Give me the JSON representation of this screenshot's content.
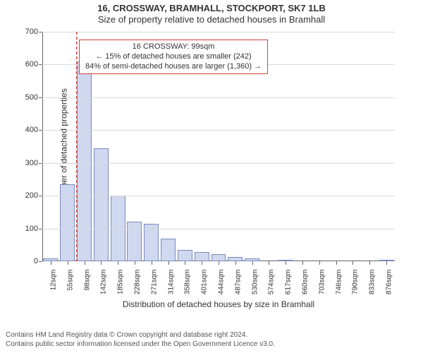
{
  "title_line1": "16, CROSSWAY, BRAMHALL, STOCKPORT, SK7 1LB",
  "title_line2": "Size of property relative to detached houses in Bramhall",
  "ylabel": "Number of detached properties",
  "xlabel": "Distribution of detached houses by size in Bramhall",
  "annotation": {
    "lines": [
      "16 CROSSWAY: 99sqm",
      "← 15% of detached houses are smaller (242)",
      "84% of semi-detached houses are larger (1,360) →"
    ],
    "border_color": "#d43f3a",
    "text_color": "#333333",
    "background_color": "#ffffff"
  },
  "chart": {
    "type": "histogram",
    "x_tick_labels": [
      "12sqm",
      "55sqm",
      "98sqm",
      "142sqm",
      "185sqm",
      "228sqm",
      "271sqm",
      "314sqm",
      "358sqm",
      "401sqm",
      "444sqm",
      "487sqm",
      "530sqm",
      "574sqm",
      "617sqm",
      "660sqm",
      "703sqm",
      "746sqm",
      "790sqm",
      "833sqm",
      "876sqm"
    ],
    "xlim": [
      0,
      21
    ],
    "values": [
      8,
      235,
      610,
      345,
      200,
      120,
      115,
      70,
      35,
      28,
      22,
      14,
      8,
      0,
      2,
      0,
      0,
      0,
      0,
      0,
      1
    ],
    "ylim": [
      0,
      700
    ],
    "ytick_step": 100,
    "bar_fill": "#cfd8ef",
    "bar_border": "#7a8bbd",
    "bar_border_width": 1,
    "bar_gap_ratio": 0.06,
    "grid_color": "#d9d9d9",
    "background_color": "#ffffff",
    "tick_label_color": "#333333",
    "highlight": {
      "x_index": 2.05,
      "color": "#d43f3a",
      "dash": "4 3"
    }
  },
  "footer": {
    "line1": "Contains HM Land Registry data © Crown copyright and database right 2024.",
    "line2": "Contains public sector information licensed under the Open Government Licence v3.0.",
    "color": "#555555"
  }
}
